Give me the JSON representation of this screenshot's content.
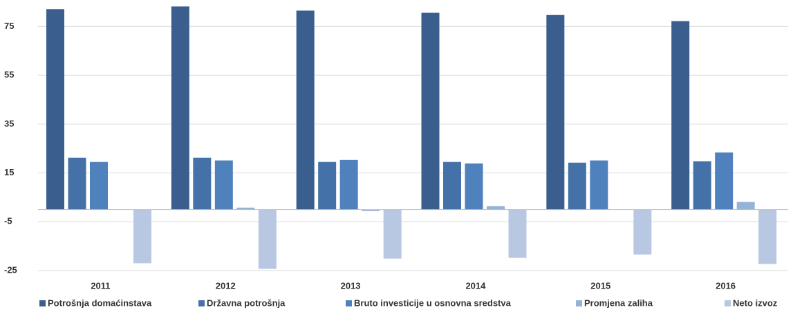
{
  "chart_data": {
    "type": "bar",
    "categories": [
      "2011",
      "2012",
      "2013",
      "2014",
      "2015",
      "2016"
    ],
    "series": [
      {
        "name": "Potrošnja domaćinstava",
        "color": "#3a5f8f",
        "values": [
          82.1,
          83.2,
          81.5,
          80.6,
          79.7,
          77.2
        ]
      },
      {
        "name": "Državna potrošnja",
        "color": "#4472a8",
        "values": [
          21.2,
          21.2,
          19.5,
          19.5,
          19.2,
          19.8
        ]
      },
      {
        "name": "Bruto investicije u osnovna sredstva",
        "color": "#4f81bd",
        "values": [
          19.5,
          20.1,
          20.3,
          18.9,
          20.1,
          23.4
        ]
      },
      {
        "name": "Promjena zaliha",
        "color": "#95b3d7",
        "values": [
          0,
          0.8,
          -0.6,
          1.4,
          0,
          3.1
        ]
      },
      {
        "name": "Neto izvoz",
        "color": "#b9c8e2",
        "values": [
          -22.0,
          -24.3,
          -20.1,
          -19.8,
          -18.4,
          -22.3
        ]
      }
    ],
    "ylim": [
      -25,
      85
    ],
    "yticks": [
      -25,
      -5,
      15,
      35,
      55,
      75
    ],
    "grid": true,
    "legend": "bottom"
  }
}
